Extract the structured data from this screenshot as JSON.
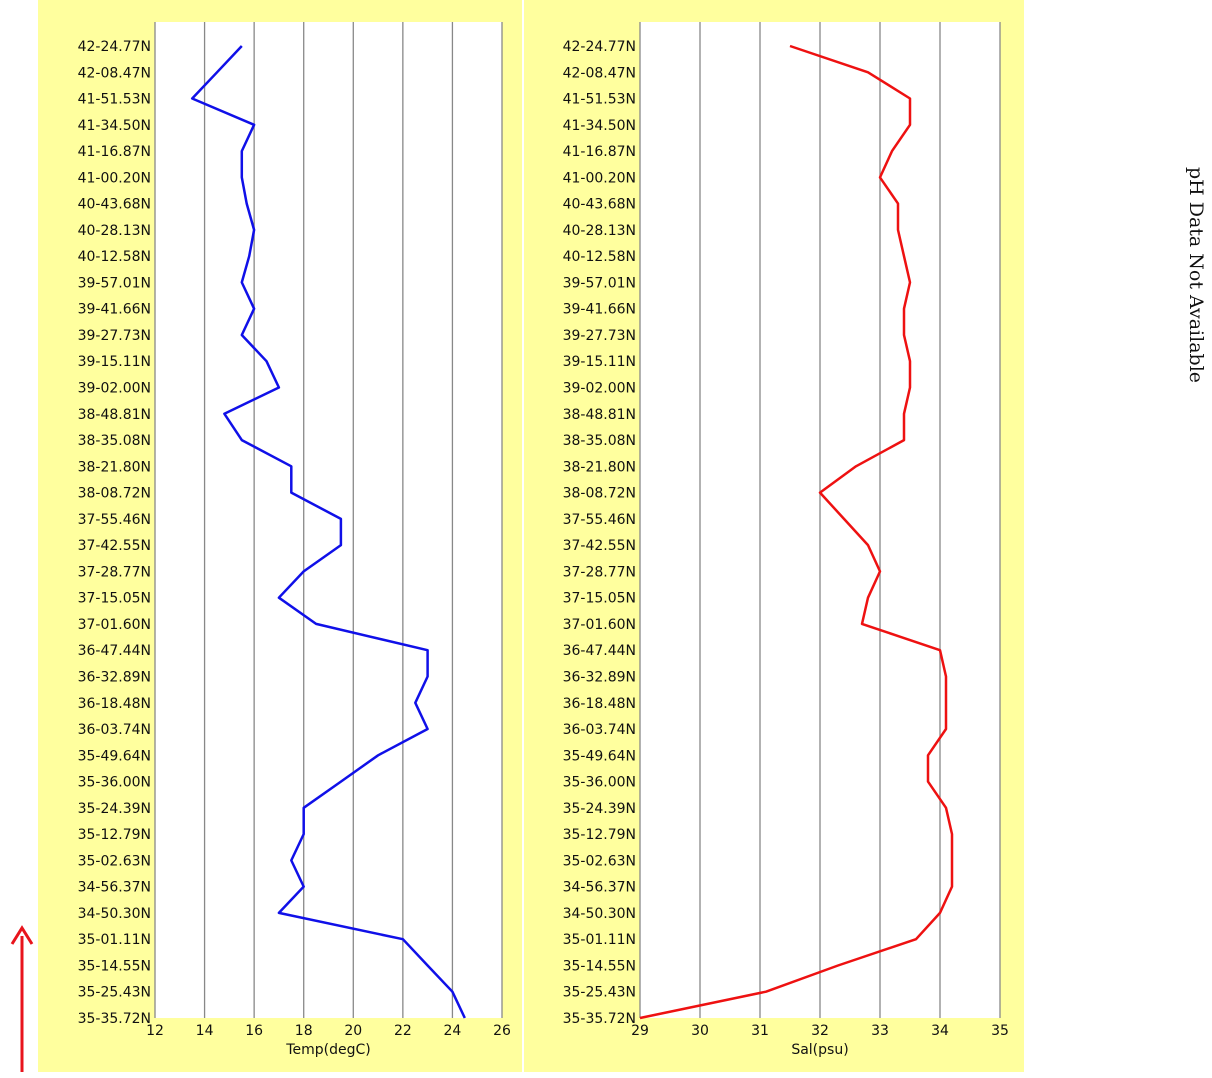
{
  "chart_data": [
    {
      "type": "line",
      "x_label": "Temp(degC)",
      "color": "#1010e8",
      "categories": [
        "42-24.77N",
        "42-08.47N",
        "41-51.53N",
        "41-34.50N",
        "41-16.87N",
        "41-00.20N",
        "40-43.68N",
        "40-28.13N",
        "40-12.58N",
        "39-57.01N",
        "39-41.66N",
        "39-27.73N",
        "39-15.11N",
        "39-02.00N",
        "38-48.81N",
        "38-35.08N",
        "38-21.80N",
        "38-08.72N",
        "37-55.46N",
        "37-42.55N",
        "37-28.77N",
        "37-15.05N",
        "37-01.60N",
        "36-47.44N",
        "36-32.89N",
        "36-18.48N",
        "36-03.74N",
        "35-49.64N",
        "35-36.00N",
        "35-24.39N",
        "35-12.79N",
        "35-02.63N",
        "34-56.37N",
        "34-50.30N",
        "35-01.11N",
        "35-14.55N",
        "35-25.43N",
        "35-35.72N"
      ],
      "values": [
        15.5,
        14.5,
        13.5,
        16,
        15.5,
        15.5,
        15.7,
        16,
        15.8,
        15.5,
        16,
        15.5,
        16.5,
        17,
        14.8,
        15.5,
        17.5,
        17.5,
        19.5,
        19.5,
        18,
        17,
        18.5,
        23,
        23,
        22.5,
        23,
        21,
        19.5,
        18,
        18,
        17.5,
        18,
        17,
        22,
        23,
        24,
        24.5
      ],
      "xlim": [
        12,
        26
      ],
      "xticks": [
        12,
        14,
        16,
        18,
        20,
        22,
        24,
        26
      ],
      "grid": true
    },
    {
      "type": "line",
      "x_label": "Sal(psu)",
      "color": "#ee1111",
      "categories": [
        "42-24.77N",
        "42-08.47N",
        "41-51.53N",
        "41-34.50N",
        "41-16.87N",
        "41-00.20N",
        "40-43.68N",
        "40-28.13N",
        "40-12.58N",
        "39-57.01N",
        "39-41.66N",
        "39-27.73N",
        "39-15.11N",
        "39-02.00N",
        "38-48.81N",
        "38-35.08N",
        "38-21.80N",
        "38-08.72N",
        "37-55.46N",
        "37-42.55N",
        "37-28.77N",
        "37-15.05N",
        "37-01.60N",
        "36-47.44N",
        "36-32.89N",
        "36-18.48N",
        "36-03.74N",
        "35-49.64N",
        "35-36.00N",
        "35-24.39N",
        "35-12.79N",
        "35-02.63N",
        "34-56.37N",
        "34-50.30N",
        "35-01.11N",
        "35-14.55N",
        "35-25.43N",
        "35-35.72N"
      ],
      "values": [
        31.5,
        32.8,
        33.5,
        33.5,
        33.2,
        33,
        33.3,
        33.3,
        33.4,
        33.5,
        33.4,
        33.4,
        33.5,
        33.5,
        33.4,
        33.4,
        32.6,
        32.0,
        32.4,
        32.8,
        33,
        32.8,
        32.7,
        34,
        34.1,
        34.1,
        34.1,
        33.8,
        33.8,
        34.1,
        34.2,
        34.2,
        34.2,
        34,
        33.6,
        32.3,
        31.1,
        29
      ],
      "xlim": [
        29,
        35
      ],
      "xticks": [
        29,
        30,
        31,
        32,
        33,
        34,
        35
      ],
      "grid": true
    }
  ],
  "annotation": "pH Data Not Available"
}
